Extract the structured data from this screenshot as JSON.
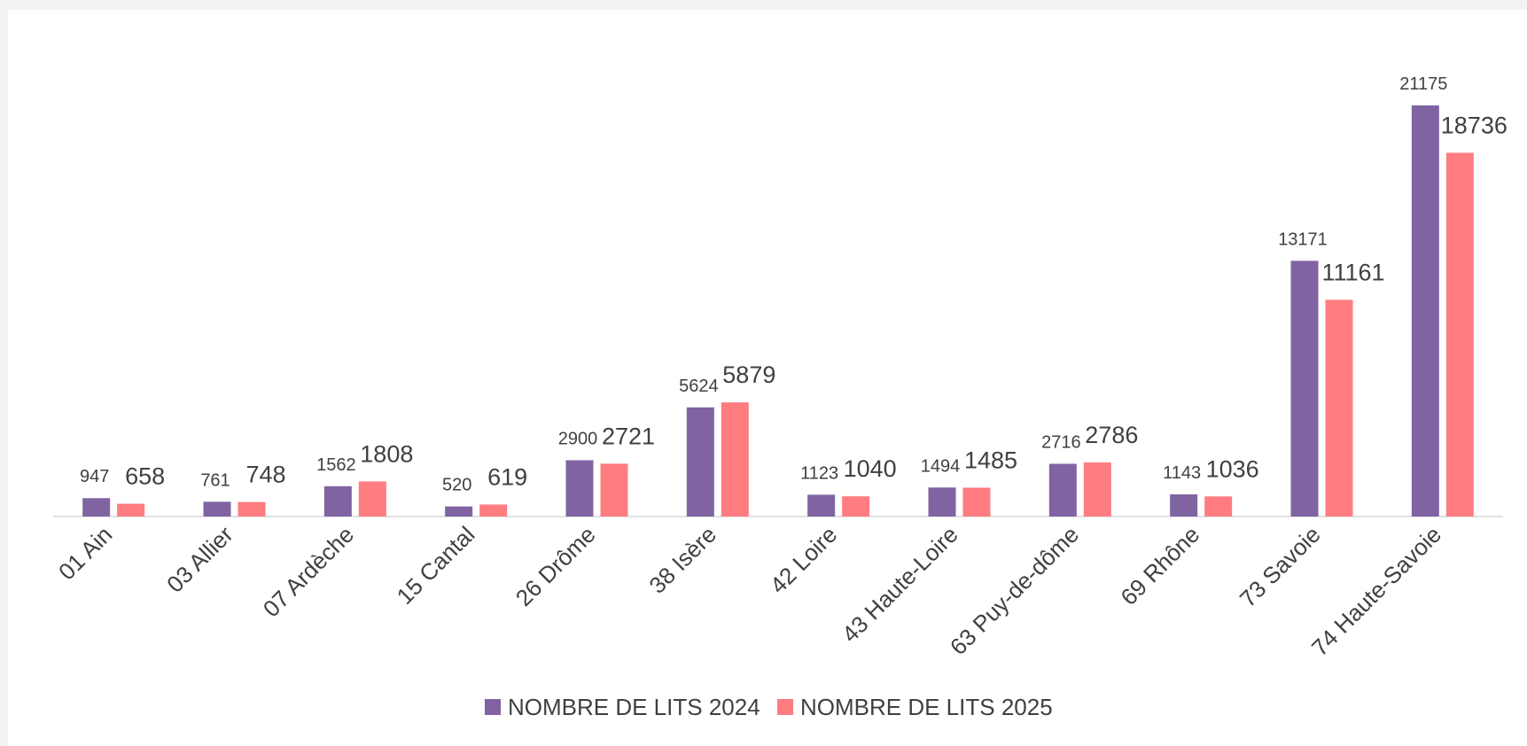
{
  "chart_data": {
    "type": "bar",
    "categories": [
      "01 Ain",
      "03 Allier",
      "07 Ardèche",
      "15 Cantal",
      "26 Drôme",
      "38 Isère",
      "42 Loire",
      "43 Haute-Loire",
      "63 Puy-de-dôme",
      "69 Rhône",
      "73 Savoie",
      "74 Haute-Savoie"
    ],
    "series": [
      {
        "name": "NOMBRE DE LITS 2024",
        "color": "#8064a2",
        "values": [
          947,
          761,
          1562,
          520,
          2900,
          5624,
          1123,
          1494,
          2716,
          1143,
          13171,
          21175
        ]
      },
      {
        "name": "NOMBRE DE LITS 2025",
        "color": "#ff7c80",
        "values": [
          658,
          748,
          1808,
          619,
          2721,
          5879,
          1040,
          1485,
          2786,
          1036,
          11161,
          18736
        ]
      }
    ],
    "legend": "bottom"
  }
}
